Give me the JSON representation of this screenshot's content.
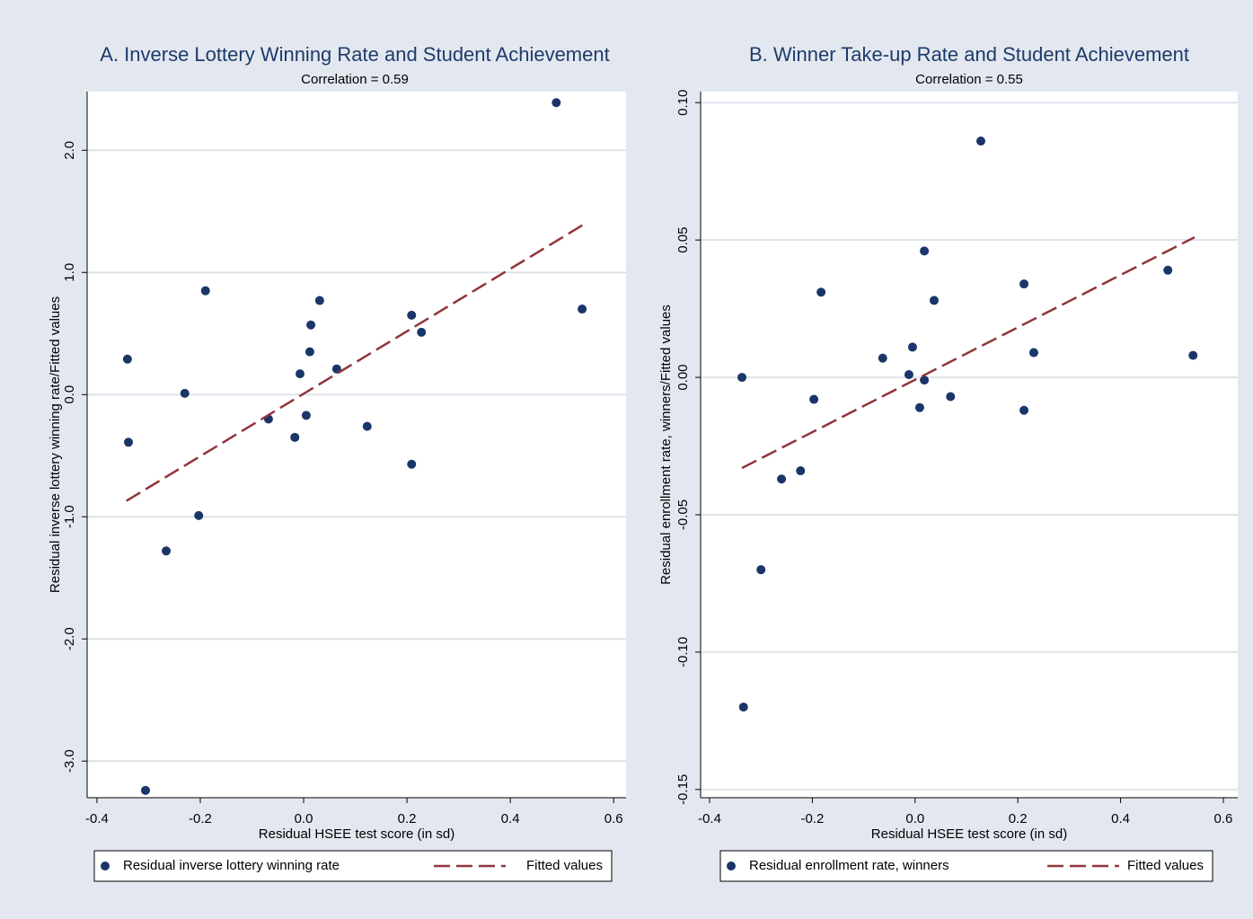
{
  "chart_data": [
    {
      "type": "scatter",
      "title": "A. Inverse Lottery Winning Rate and Student Achievement",
      "subtitle": "Correlation = 0.59",
      "xlabel": "Residual HSEE test score (in sd)",
      "ylabel": "Residual inverse lottery winning rate/Fitted values",
      "xlim": [
        -0.419,
        0.624
      ],
      "ylim": [
        -3.3,
        2.48
      ],
      "xticks": [
        -0.4,
        -0.2,
        {
          "value": 0,
          "label": "0.0"
        },
        0.2,
        0.4,
        0.6
      ],
      "yticks": [
        {
          "value": -3,
          "label": "-3.0"
        },
        {
          "value": -2,
          "label": "-2.0"
        },
        {
          "value": -1,
          "label": "-1.0"
        },
        {
          "value": 0,
          "label": "0.0"
        },
        {
          "value": 1,
          "label": "1.0"
        },
        {
          "value": 2,
          "label": "2.0"
        }
      ],
      "grid": true,
      "legend": "bottom",
      "series": [
        {
          "name": "Residual inverse lottery winning rate",
          "type": "scatter",
          "color": "#1a3668",
          "x": [
            0.489,
            0.539,
            -0.19,
            -0.341,
            -0.23,
            -0.339,
            -0.203,
            -0.266,
            -0.306,
            -0.068,
            -0.017,
            0.005,
            -0.007,
            0.012,
            0.014,
            0.031,
            0.064,
            0.123,
            0.209,
            0.228,
            0.209
          ],
          "values": [
            2.39,
            0.7,
            0.85,
            0.29,
            0.01,
            -0.39,
            -0.99,
            -1.28,
            -3.24,
            -0.2,
            -0.35,
            -0.17,
            0.17,
            0.35,
            0.57,
            0.77,
            0.21,
            -0.26,
            0.65,
            0.51,
            -0.57
          ]
        },
        {
          "name": "Fitted values",
          "type": "line",
          "color": "#90353b",
          "x": [
            -0.343,
            0.541
          ],
          "values": [
            -0.87,
            1.39
          ]
        }
      ]
    },
    {
      "type": "scatter",
      "title": "B. Winner Take-up Rate and Student Achievement",
      "subtitle": "Correlation = 0.55",
      "xlabel": "Residual HSEE test score (in sd)",
      "ylabel": "Residual enrollment rate, winners/Fitted values",
      "xlim": [
        -0.4175,
        0.628
      ],
      "ylim": [
        -0.153,
        0.104
      ],
      "xticks": [
        -0.4,
        -0.2,
        {
          "value": 0,
          "label": "0.0"
        },
        0.2,
        0.4,
        0.6
      ],
      "yticks": [
        -0.15,
        {
          "value": -0.1,
          "label": "-0.10"
        },
        -0.05,
        {
          "value": 0,
          "label": "0.00"
        },
        0.05,
        {
          "value": 0.1,
          "label": "0.10"
        }
      ],
      "grid": true,
      "legend": "bottom",
      "series": [
        {
          "name": "Residual enrollment rate, winners",
          "type": "scatter",
          "color": "#1a3668",
          "x": [
            -0.337,
            -0.334,
            -0.3,
            -0.26,
            -0.223,
            -0.197,
            -0.183,
            -0.063,
            -0.012,
            -0.005,
            0.009,
            0.018,
            0.018,
            0.037,
            0.069,
            0.128,
            0.212,
            0.212,
            0.231,
            0.492,
            0.541
          ],
          "values": [
            0.0,
            -0.12,
            -0.07,
            -0.037,
            -0.034,
            -0.008,
            0.031,
            0.007,
            0.001,
            0.011,
            -0.011,
            -0.001,
            0.046,
            0.028,
            -0.007,
            0.086,
            0.034,
            -0.012,
            0.009,
            0.039,
            0.008
          ]
        },
        {
          "name": "Fitted values",
          "type": "line",
          "color": "#90353b",
          "x": [
            -0.337,
            0.544
          ],
          "values": [
            -0.033,
            0.051
          ]
        }
      ]
    }
  ]
}
